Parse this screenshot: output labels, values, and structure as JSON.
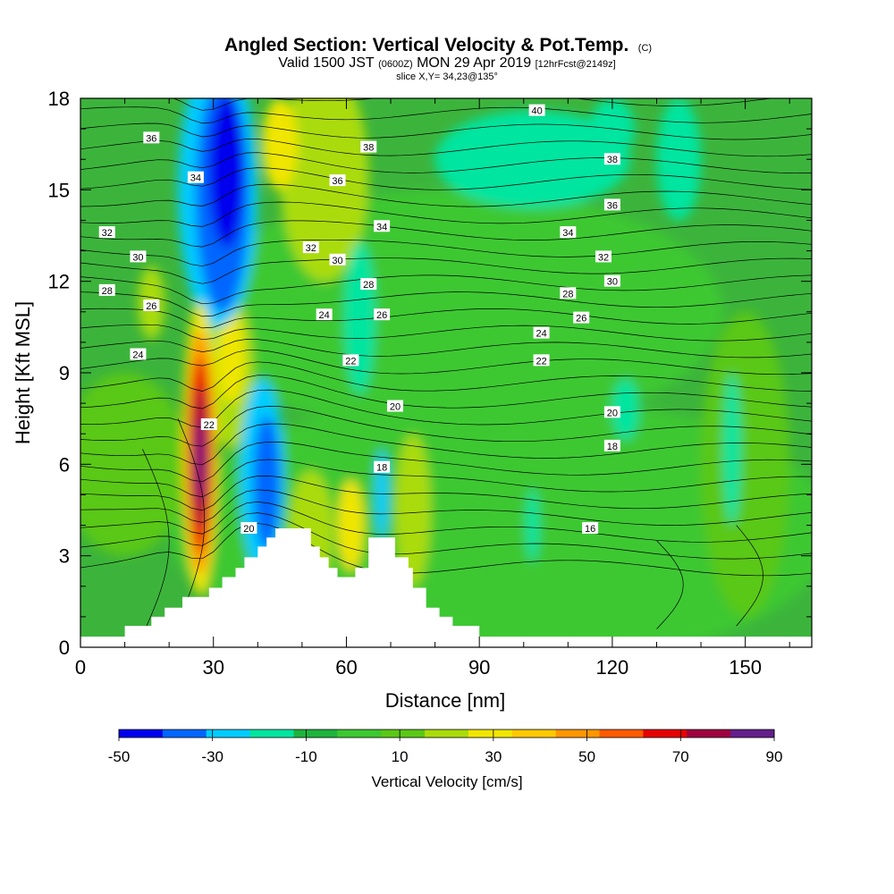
{
  "chart_data": {
    "type": "heatmap",
    "title": {
      "main": "Angled Section: Vertical Velocity & Pot.Temp.",
      "main_suffix": "(C)",
      "line2_valid": "Valid 1500 JST",
      "line2_z": "(0600Z)",
      "line2_date": "MON 29 Apr 2019",
      "line2_fcst": "[12hrFcst@2149z]",
      "line3": "slice X,Y= 34,23@135°"
    },
    "xlabel": "Distance [nm]",
    "ylabel": "Height [Kft MSL]",
    "xlim": [
      0,
      165
    ],
    "ylim": [
      0,
      18
    ],
    "xticks": [
      "0",
      "30",
      "60",
      "90",
      "120",
      "150"
    ],
    "xtick_values": [
      0,
      30,
      60,
      90,
      120,
      150
    ],
    "yticks": [
      "0",
      "3",
      "6",
      "9",
      "12",
      "15",
      "18"
    ],
    "ytick_values": [
      0,
      3,
      6,
      9,
      12,
      15,
      18
    ],
    "fill_variable": "Vertical Velocity [cm/s]",
    "contour_variable": "Pot.Temp. (C)",
    "colorbar": {
      "label": "Vertical Velocity [cm/s]",
      "levels": [
        -50,
        -40,
        -30,
        -20,
        -10,
        0,
        10,
        20,
        30,
        40,
        50,
        60,
        70,
        80,
        90
      ],
      "tick_labels": [
        "-50",
        "-30",
        "-10",
        "10",
        "30",
        "50",
        "70",
        "90"
      ],
      "tick_values": [
        -50,
        -30,
        -10,
        10,
        30,
        50,
        70,
        90
      ],
      "colors": [
        "#0000ee",
        "#0066ff",
        "#00ccff",
        "#00e5a0",
        "#1db43c",
        "#3cc830",
        "#5ac814",
        "#aadc0a",
        "#f0e600",
        "#ffc800",
        "#ff9600",
        "#ff5a00",
        "#e60000",
        "#a00040",
        "#641e8c"
      ]
    },
    "terrain_kft": [
      [
        0,
        0.35
      ],
      [
        10,
        0.35
      ],
      [
        10,
        0.7
      ],
      [
        16,
        0.7
      ],
      [
        16,
        1.0
      ],
      [
        19,
        1.0
      ],
      [
        19,
        1.3
      ],
      [
        23,
        1.3
      ],
      [
        23,
        1.65
      ],
      [
        29,
        1.65
      ],
      [
        29,
        1.95
      ],
      [
        32,
        1.95
      ],
      [
        32,
        2.3
      ],
      [
        35,
        2.3
      ],
      [
        35,
        2.6
      ],
      [
        37,
        2.6
      ],
      [
        37,
        2.95
      ],
      [
        40,
        2.95
      ],
      [
        40,
        3.3
      ],
      [
        42,
        3.3
      ],
      [
        42,
        3.6
      ],
      [
        44,
        3.6
      ],
      [
        44,
        3.9
      ],
      [
        52,
        3.9
      ],
      [
        52,
        3.3
      ],
      [
        54,
        3.3
      ],
      [
        54,
        2.95
      ],
      [
        56,
        2.95
      ],
      [
        56,
        2.6
      ],
      [
        58,
        2.6
      ],
      [
        58,
        2.3
      ],
      [
        62,
        2.3
      ],
      [
        62,
        2.6
      ],
      [
        65,
        2.6
      ],
      [
        65,
        3.6
      ],
      [
        71,
        3.6
      ],
      [
        71,
        2.95
      ],
      [
        74,
        2.95
      ],
      [
        74,
        2.6
      ],
      [
        75,
        2.6
      ],
      [
        75,
        1.95
      ],
      [
        78,
        1.95
      ],
      [
        78,
        1.3
      ],
      [
        81,
        1.3
      ],
      [
        81,
        1.0
      ],
      [
        84,
        1.0
      ],
      [
        84,
        0.7
      ],
      [
        90,
        0.7
      ],
      [
        90,
        0.35
      ],
      [
        165,
        0.35
      ]
    ],
    "pot_temp_labels": [
      {
        "text": "40",
        "x": 103,
        "y": 17.6
      },
      {
        "text": "38",
        "x": 65,
        "y": 16.4
      },
      {
        "text": "38",
        "x": 120,
        "y": 16.0
      },
      {
        "text": "36",
        "x": 16,
        "y": 16.7
      },
      {
        "text": "36",
        "x": 58,
        "y": 15.3
      },
      {
        "text": "36",
        "x": 120,
        "y": 14.5
      },
      {
        "text": "34",
        "x": 26,
        "y": 15.4
      },
      {
        "text": "34",
        "x": 68,
        "y": 13.8
      },
      {
        "text": "34",
        "x": 110,
        "y": 13.6
      },
      {
        "text": "32",
        "x": 6,
        "y": 13.6
      },
      {
        "text": "32",
        "x": 52,
        "y": 13.1
      },
      {
        "text": "32",
        "x": 118,
        "y": 12.8
      },
      {
        "text": "30",
        "x": 13,
        "y": 12.8
      },
      {
        "text": "30",
        "x": 58,
        "y": 12.7
      },
      {
        "text": "30",
        "x": 120,
        "y": 12.0
      },
      {
        "text": "28",
        "x": 6,
        "y": 11.7
      },
      {
        "text": "28",
        "x": 65,
        "y": 11.9
      },
      {
        "text": "28",
        "x": 110,
        "y": 11.6
      },
      {
        "text": "26",
        "x": 16,
        "y": 11.2
      },
      {
        "text": "26",
        "x": 68,
        "y": 10.9
      },
      {
        "text": "26",
        "x": 113,
        "y": 10.8
      },
      {
        "text": "24",
        "x": 13,
        "y": 9.6
      },
      {
        "text": "24",
        "x": 55,
        "y": 10.9
      },
      {
        "text": "24",
        "x": 104,
        "y": 10.3
      },
      {
        "text": "22",
        "x": 29,
        "y": 7.3
      },
      {
        "text": "22",
        "x": 61,
        "y": 9.4
      },
      {
        "text": "22",
        "x": 104,
        "y": 9.4
      },
      {
        "text": "20",
        "x": 71,
        "y": 7.9
      },
      {
        "text": "20",
        "x": 120,
        "y": 7.7
      },
      {
        "text": "20",
        "x": 38,
        "y": 3.9
      },
      {
        "text": "18",
        "x": 68,
        "y": 5.9
      },
      {
        "text": "18",
        "x": 120,
        "y": 6.6
      },
      {
        "text": "16",
        "x": 115,
        "y": 3.9
      }
    ]
  }
}
